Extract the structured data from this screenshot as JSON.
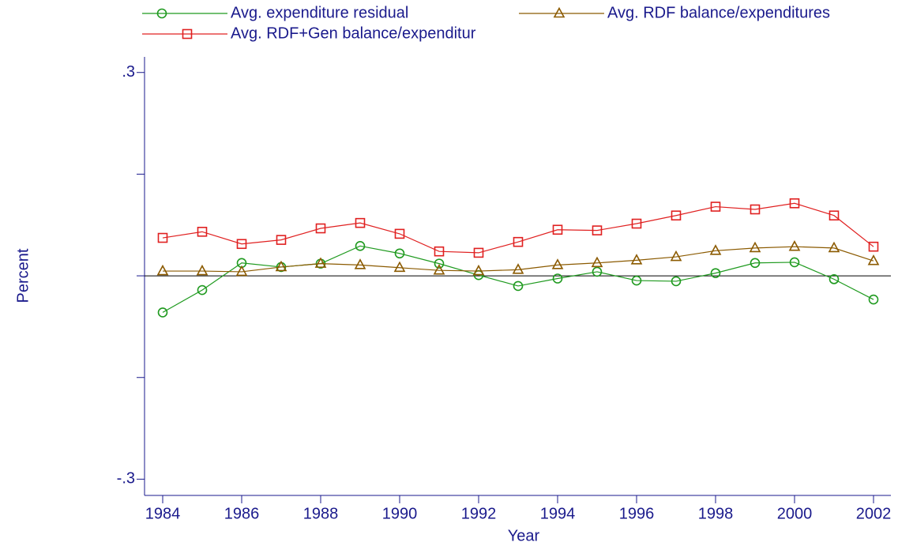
{
  "chart_data": {
    "type": "line",
    "x": [
      1984,
      1985,
      1986,
      1987,
      1988,
      1989,
      1990,
      1991,
      1992,
      1993,
      1994,
      1995,
      1996,
      1997,
      1998,
      1999,
      2000,
      2001,
      2002
    ],
    "xlim": [
      1983.54,
      2002.44
    ],
    "xticks": [
      1984,
      1986,
      1988,
      1990,
      1992,
      1994,
      1996,
      1998,
      2000,
      2002
    ],
    "ylim": [
      -0.324,
      0.323
    ],
    "yticks": [
      {
        "value": -0.3,
        "label": "-.3"
      },
      {
        "value": 0.3,
        "label": ".3"
      }
    ],
    "yticks_minor": [
      -0.15,
      0,
      0.15
    ],
    "yline": 0,
    "xlabel": "Year",
    "ylabel": "Percent",
    "series": [
      {
        "name": "Avg. expenditure residual",
        "color": "#1f9a1f",
        "marker": "circle",
        "values": [
          -0.054,
          -0.021,
          0.019,
          0.013,
          0.018,
          0.044,
          0.033,
          0.018,
          0.001,
          -0.015,
          -0.004,
          0.006,
          -0.007,
          -0.008,
          0.004,
          0.019,
          0.02,
          -0.005,
          -0.035
        ]
      },
      {
        "name": "Avg. RDF balance/expenditures",
        "color": "#8b5a00",
        "marker": "triangle",
        "values": [
          0.007,
          0.007,
          0.006,
          0.013,
          0.018,
          0.016,
          0.012,
          0.008,
          0.007,
          0.009,
          0.016,
          0.019,
          0.023,
          0.028,
          0.037,
          0.041,
          0.043,
          0.041,
          0.022
        ]
      },
      {
        "name": "Avg. RDF+Gen balance/expenditur",
        "color": "#e02020",
        "marker": "square",
        "values": [
          0.056,
          0.065,
          0.047,
          0.053,
          0.07,
          0.078,
          0.062,
          0.036,
          0.034,
          0.05,
          0.068,
          0.067,
          0.077,
          0.089,
          0.102,
          0.098,
          0.107,
          0.089,
          0.043
        ]
      }
    ]
  }
}
